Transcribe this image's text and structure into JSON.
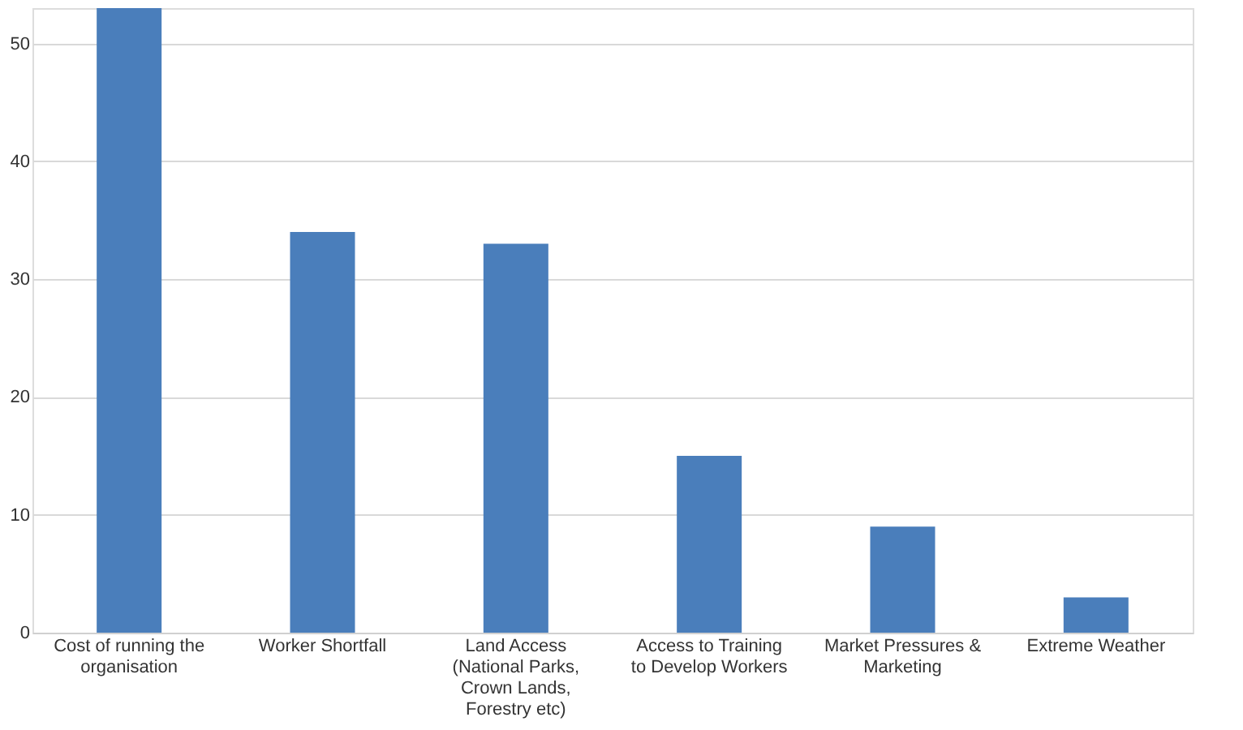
{
  "chart_data": {
    "type": "bar",
    "categories": [
      "Cost of running the organisation",
      "Worker Shortfall",
      "Land Access (National Parks, Crown Lands, Forestry etc)",
      "Access to Training to Develop Workers",
      "Market Pressures & Marketing",
      "Extreme Weather"
    ],
    "values": [
      53,
      34,
      33,
      15,
      9,
      3
    ],
    "color": "#4a7ebb",
    "ylim": [
      0,
      53
    ],
    "yticks": [
      0,
      10,
      20,
      30,
      40,
      50
    ],
    "grid": "y"
  }
}
